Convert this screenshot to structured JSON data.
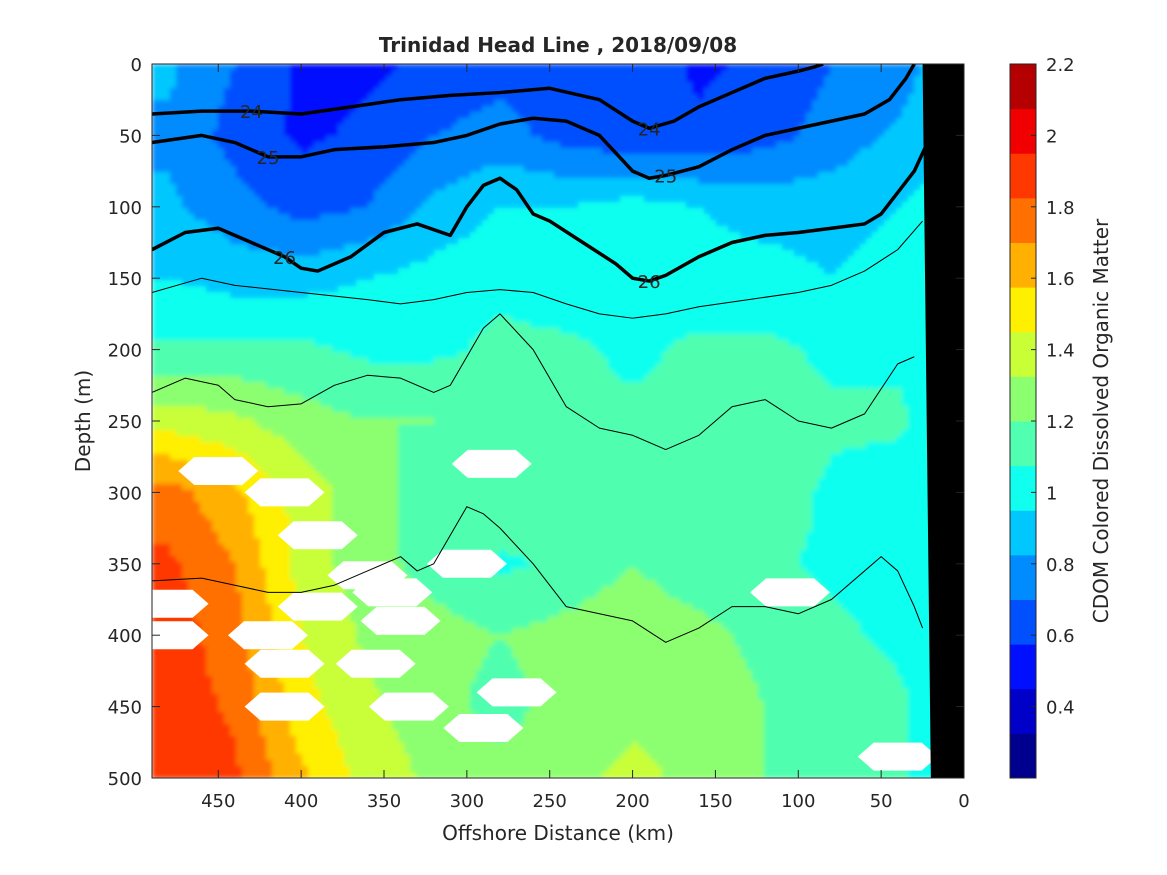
{
  "chart_data": {
    "type": "heatmap",
    "title": "Trinidad Head Line , 2018/09/08",
    "xlabel": "Offshore Distance (km)",
    "ylabel": "Depth (m)",
    "xlim": [
      490,
      0
    ],
    "xdirection": "reversed",
    "ylim": [
      0,
      500
    ],
    "ydirection": "reversed",
    "x_ticks": [
      450,
      400,
      350,
      300,
      250,
      200,
      150,
      100,
      50,
      0
    ],
    "y_ticks": [
      0,
      50,
      100,
      150,
      200,
      250,
      300,
      350,
      400,
      450,
      500
    ],
    "colorbar": {
      "label": "CDOM Colored Dissolved Organic Matter",
      "min": 0.2,
      "max": 2.2,
      "ticks": [
        0.4,
        0.6,
        0.8,
        1,
        1.2,
        1.4,
        1.6,
        1.8,
        2,
        2.2
      ],
      "colors": [
        "#00008f",
        "#0000c8",
        "#0010ff",
        "#0050ff",
        "#008cff",
        "#00c8ff",
        "#10ffef",
        "#50ffaf",
        "#8cff70",
        "#c8ff37",
        "#ffef00",
        "#ffb000",
        "#ff7000",
        "#ff3800",
        "#f00000",
        "#b40000"
      ]
    },
    "cdom_grid": {
      "x_km": [
        480,
        440,
        400,
        360,
        320,
        280,
        240,
        200,
        160,
        120,
        80,
        40,
        10
      ],
      "depth_m": [
        0,
        50,
        100,
        150,
        200,
        250,
        300,
        350,
        400,
        450,
        500
      ],
      "values": [
        [
          0.85,
          0.7,
          0.55,
          0.55,
          0.6,
          0.65,
          0.65,
          0.65,
          0.55,
          0.6,
          0.7,
          0.75,
          0.9
        ],
        [
          0.8,
          0.65,
          0.55,
          0.6,
          0.7,
          0.75,
          0.65,
          0.6,
          0.6,
          0.65,
          0.75,
          0.85,
          0.95
        ],
        [
          0.85,
          0.75,
          0.65,
          0.7,
          0.85,
          0.95,
          0.95,
          1.0,
          0.95,
          0.9,
          0.9,
          0.95,
          1.0
        ],
        [
          0.95,
          0.9,
          0.9,
          0.95,
          1.0,
          1.05,
          1.0,
          1.0,
          1.0,
          1.0,
          0.95,
          1.0,
          1.0
        ],
        [
          1.1,
          1.1,
          1.1,
          1.05,
          1.05,
          1.1,
          1.1,
          1.05,
          1.1,
          1.1,
          1.05,
          1.05,
          1.0
        ],
        [
          1.4,
          1.35,
          1.25,
          1.2,
          1.2,
          1.15,
          1.1,
          1.1,
          1.1,
          1.15,
          1.1,
          1.1,
          1.0
        ],
        [
          1.75,
          1.6,
          1.4,
          1.25,
          1.15,
          1.2,
          1.2,
          1.15,
          1.15,
          1.15,
          1.05,
          1.0,
          1.0
        ],
        [
          1.85,
          1.7,
          1.4,
          1.25,
          1.15,
          1.05,
          1.1,
          1.2,
          1.1,
          1.1,
          1.05,
          1.05,
          1.0
        ],
        [
          1.9,
          1.75,
          1.45,
          1.3,
          1.25,
          1.2,
          1.25,
          1.3,
          1.25,
          1.15,
          1.1,
          1.05,
          1.0
        ],
        [
          1.9,
          1.8,
          1.5,
          1.35,
          1.25,
          1.15,
          1.25,
          1.3,
          1.3,
          1.2,
          1.15,
          1.1,
          1.0
        ],
        [
          1.95,
          1.85,
          1.6,
          1.4,
          1.3,
          1.25,
          1.3,
          1.35,
          1.3,
          1.2,
          1.15,
          1.1,
          1.0
        ]
      ]
    },
    "density_contours": [
      {
        "level": 24,
        "labeled": true,
        "x_km": [
          490,
          460,
          430,
          400,
          370,
          340,
          310,
          280,
          250,
          220,
          200,
          190,
          175,
          160,
          140,
          120,
          100,
          90,
          85
        ],
        "depth_m": [
          35,
          33,
          33,
          35,
          30,
          25,
          22,
          20,
          17,
          25,
          40,
          45,
          40,
          30,
          20,
          10,
          5,
          2,
          0
        ]
      },
      {
        "level": 25,
        "labeled": true,
        "x_km": [
          490,
          460,
          440,
          420,
          400,
          380,
          350,
          320,
          300,
          280,
          260,
          240,
          220,
          200,
          190,
          180,
          160,
          140,
          120,
          100,
          80,
          60,
          45,
          35,
          30
        ],
        "depth_m": [
          55,
          50,
          55,
          65,
          65,
          60,
          58,
          55,
          50,
          42,
          38,
          40,
          50,
          75,
          80,
          78,
          72,
          60,
          50,
          45,
          40,
          35,
          25,
          10,
          0
        ]
      },
      {
        "level": 26,
        "labeled": true,
        "x_km": [
          490,
          470,
          450,
          430,
          410,
          400,
          390,
          370,
          350,
          330,
          310,
          300,
          290,
          280,
          270,
          260,
          250,
          230,
          210,
          200,
          190,
          180,
          160,
          140,
          120,
          100,
          80,
          60,
          50,
          40,
          30,
          20,
          10
        ],
        "depth_m": [
          130,
          118,
          115,
          125,
          135,
          143,
          145,
          135,
          118,
          112,
          120,
          100,
          85,
          80,
          88,
          105,
          110,
          125,
          140,
          150,
          152,
          148,
          135,
          125,
          120,
          118,
          115,
          112,
          105,
          90,
          75,
          50,
          30
        ]
      },
      {
        "level": null,
        "labeled": false,
        "x_km": [
          490,
          460,
          440,
          400,
          360,
          340,
          320,
          300,
          280,
          260,
          240,
          220,
          200,
          180,
          160,
          130,
          100,
          80,
          60,
          40,
          25
        ],
        "depth_m": [
          160,
          150,
          155,
          160,
          165,
          168,
          165,
          160,
          158,
          160,
          168,
          175,
          178,
          175,
          170,
          165,
          160,
          155,
          145,
          130,
          110
        ]
      },
      {
        "level": null,
        "labeled": false,
        "x_km": [
          490,
          470,
          450,
          440,
          420,
          400,
          380,
          360,
          340,
          320,
          310,
          300,
          290,
          280,
          260,
          240,
          220,
          200,
          180,
          160,
          140,
          120,
          100,
          80,
          60,
          40,
          30
        ],
        "depth_m": [
          230,
          220,
          225,
          235,
          240,
          238,
          225,
          218,
          220,
          230,
          225,
          205,
          185,
          175,
          200,
          240,
          255,
          260,
          270,
          260,
          240,
          235,
          250,
          255,
          245,
          210,
          205
        ]
      },
      {
        "level": null,
        "labeled": false,
        "x_km": [
          490,
          460,
          440,
          420,
          400,
          380,
          360,
          340,
          330,
          320,
          310,
          300,
          290,
          280,
          260,
          240,
          220,
          200,
          180,
          170,
          160,
          140,
          120,
          100,
          80,
          60,
          50,
          40,
          30,
          25
        ],
        "depth_m": [
          362,
          360,
          365,
          370,
          370,
          365,
          355,
          345,
          355,
          350,
          330,
          310,
          315,
          325,
          350,
          380,
          385,
          390,
          405,
          400,
          395,
          380,
          380,
          385,
          375,
          355,
          345,
          355,
          380,
          395
        ]
      }
    ],
    "missing_data_patches": [
      {
        "x_km": 450,
        "depth_m": 285
      },
      {
        "x_km": 410,
        "depth_m": 300
      },
      {
        "x_km": 390,
        "depth_m": 330
      },
      {
        "x_km": 285,
        "depth_m": 280
      },
      {
        "x_km": 300,
        "depth_m": 350
      },
      {
        "x_km": 360,
        "depth_m": 358
      },
      {
        "x_km": 480,
        "depth_m": 378
      },
      {
        "x_km": 345,
        "depth_m": 370
      },
      {
        "x_km": 390,
        "depth_m": 380
      },
      {
        "x_km": 420,
        "depth_m": 400
      },
      {
        "x_km": 340,
        "depth_m": 390
      },
      {
        "x_km": 480,
        "depth_m": 400
      },
      {
        "x_km": 410,
        "depth_m": 420
      },
      {
        "x_km": 355,
        "depth_m": 420
      },
      {
        "x_km": 270,
        "depth_m": 440
      },
      {
        "x_km": 410,
        "depth_m": 450
      },
      {
        "x_km": 335,
        "depth_m": 450
      },
      {
        "x_km": 290,
        "depth_m": 465
      },
      {
        "x_km": 105,
        "depth_m": 370
      },
      {
        "x_km": 40,
        "depth_m": 485
      }
    ],
    "bathymetry": {
      "x_km": [
        0,
        0,
        20,
        25
      ],
      "depth_m": [
        0,
        500,
        500,
        0
      ],
      "color": "#000000"
    }
  }
}
